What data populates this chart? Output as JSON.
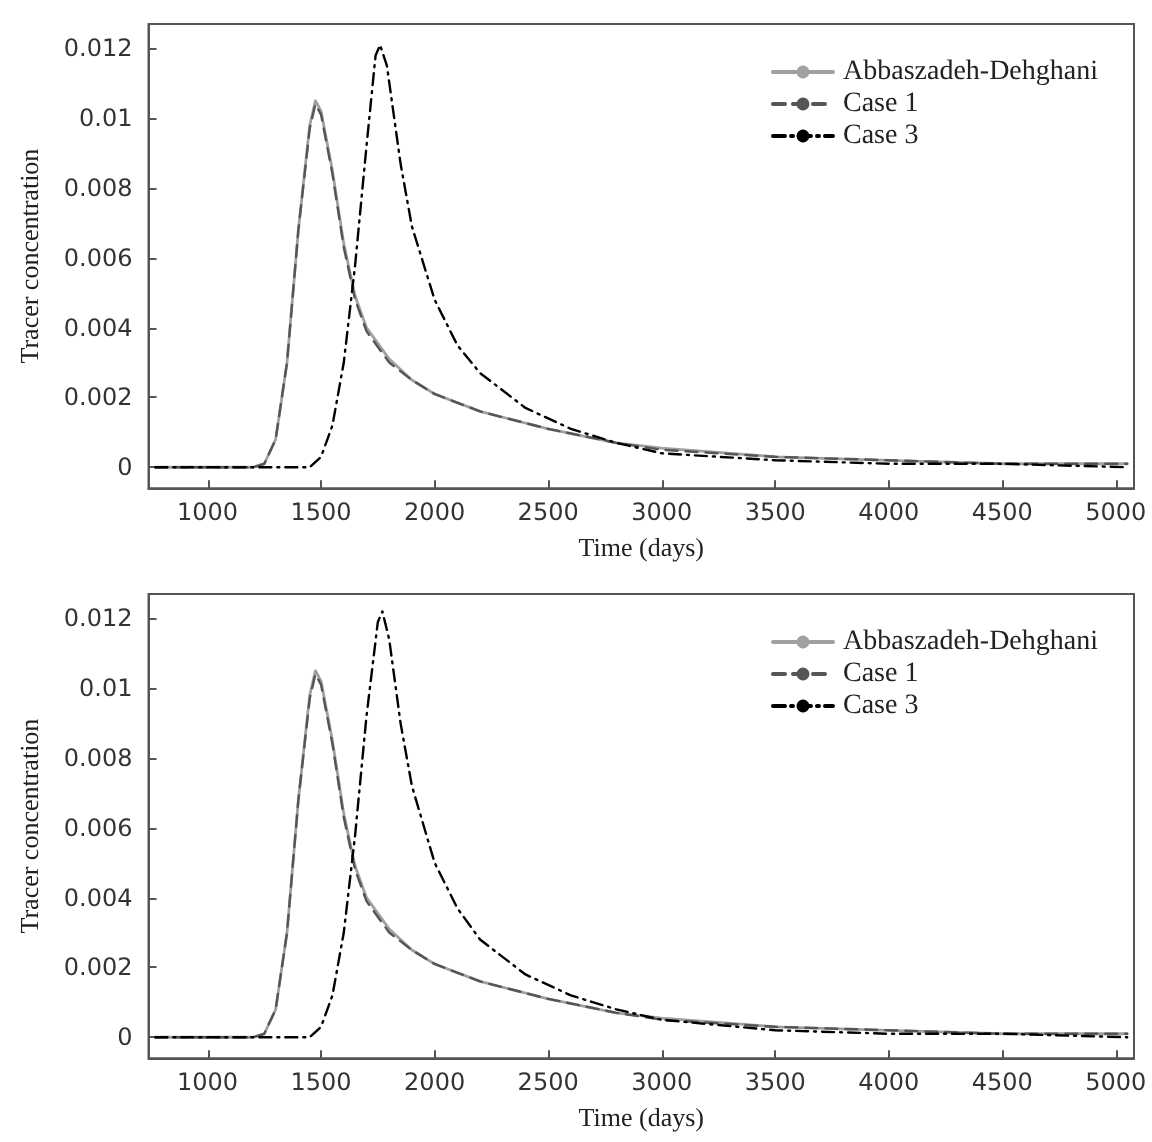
{
  "chart_data": [
    {
      "type": "line",
      "xlabel": "Time (days)",
      "ylabel": "Tracer concentration",
      "xlim": [
        740,
        5080
      ],
      "ylim": [
        -0.0006,
        0.0127
      ],
      "xticks": [
        1000,
        1500,
        2000,
        2500,
        3000,
        3500,
        4000,
        4500,
        5000
      ],
      "yticks": [
        0,
        0.002,
        0.004,
        0.006,
        0.008,
        0.01,
        0.012
      ],
      "grid": false,
      "legend": "top right",
      "marker": "none",
      "series": [
        {
          "name": "Abbaszadeh-Dehghani",
          "color": "#a0a0a0",
          "line_style": "solid",
          "x": [
            770,
            1000,
            1200,
            1250,
            1300,
            1350,
            1400,
            1450,
            1475,
            1500,
            1550,
            1600,
            1650,
            1700,
            1800,
            1900,
            2000,
            2200,
            2500,
            2800,
            3000,
            3500,
            4000,
            4500,
            5050
          ],
          "values": [
            0,
            0,
            0,
            0.0001,
            0.0008,
            0.003,
            0.0068,
            0.0098,
            0.0105,
            0.0102,
            0.0085,
            0.0064,
            0.0049,
            0.004,
            0.0031,
            0.0025,
            0.0021,
            0.0016,
            0.0011,
            0.0007,
            0.00055,
            0.0003,
            0.0002,
            0.0001,
            0.0001
          ]
        },
        {
          "name": "Case 1",
          "color": "#555555",
          "line_style": "dashed",
          "x": [
            770,
            1000,
            1200,
            1250,
            1300,
            1350,
            1400,
            1450,
            1475,
            1500,
            1550,
            1600,
            1650,
            1700,
            1800,
            1900,
            2000,
            2200,
            2500,
            2800,
            3000,
            3500,
            4000,
            4500,
            5050
          ],
          "values": [
            0,
            0,
            0,
            0.0001,
            0.0008,
            0.003,
            0.0068,
            0.0097,
            0.0104,
            0.0101,
            0.0084,
            0.0063,
            0.0048,
            0.0039,
            0.003,
            0.0025,
            0.0021,
            0.0016,
            0.0011,
            0.0007,
            0.0005,
            0.0003,
            0.0002,
            0.0001,
            0.0001
          ]
        },
        {
          "name": "Case 3",
          "color": "#000000",
          "line_style": "dashdot",
          "x": [
            770,
            1000,
            1400,
            1450,
            1500,
            1550,
            1600,
            1650,
            1700,
            1740,
            1760,
            1790,
            1850,
            1900,
            2000,
            2100,
            2200,
            2400,
            2600,
            2800,
            3000,
            3500,
            4000,
            4500,
            5050
          ],
          "values": [
            0,
            0,
            0,
            0,
            0.0003,
            0.0012,
            0.003,
            0.0058,
            0.0092,
            0.0118,
            0.0121,
            0.0115,
            0.0087,
            0.0069,
            0.0048,
            0.0035,
            0.0027,
            0.0017,
            0.0011,
            0.0007,
            0.0004,
            0.0002,
            0.0001,
            0.0001,
            0
          ]
        }
      ]
    },
    {
      "type": "line",
      "xlabel": "Time (days)",
      "ylabel": "Tracer concentration",
      "xlim": [
        740,
        5080
      ],
      "ylim": [
        -0.0006,
        0.0127
      ],
      "xticks": [
        1000,
        1500,
        2000,
        2500,
        3000,
        3500,
        4000,
        4500,
        5000
      ],
      "yticks": [
        0,
        0.002,
        0.004,
        0.006,
        0.008,
        0.01,
        0.012
      ],
      "grid": false,
      "legend": "top right",
      "marker": "none",
      "series": [
        {
          "name": "Abbaszadeh-Dehghani",
          "color": "#a0a0a0",
          "line_style": "solid",
          "x": [
            770,
            1000,
            1200,
            1250,
            1300,
            1350,
            1400,
            1450,
            1475,
            1500,
            1550,
            1600,
            1650,
            1700,
            1800,
            1900,
            2000,
            2200,
            2500,
            2800,
            3000,
            3500,
            4000,
            4500,
            5050
          ],
          "values": [
            0,
            0,
            0,
            0.0001,
            0.0008,
            0.003,
            0.0068,
            0.0098,
            0.0105,
            0.0102,
            0.0085,
            0.0064,
            0.0049,
            0.004,
            0.0031,
            0.0025,
            0.0021,
            0.0016,
            0.0011,
            0.0007,
            0.00055,
            0.0003,
            0.0002,
            0.0001,
            0.0001
          ]
        },
        {
          "name": "Case 1",
          "color": "#555555",
          "line_style": "dashed",
          "x": [
            770,
            1000,
            1200,
            1250,
            1300,
            1350,
            1400,
            1450,
            1475,
            1500,
            1550,
            1600,
            1650,
            1700,
            1800,
            1900,
            2000,
            2200,
            2500,
            2800,
            3000,
            3500,
            4000,
            4500,
            5050
          ],
          "values": [
            0,
            0,
            0,
            0.0001,
            0.0008,
            0.003,
            0.0068,
            0.0097,
            0.0104,
            0.0101,
            0.0084,
            0.0063,
            0.0048,
            0.0039,
            0.003,
            0.0025,
            0.0021,
            0.0016,
            0.0011,
            0.0007,
            0.0005,
            0.0003,
            0.0002,
            0.0001,
            0.0001
          ]
        },
        {
          "name": "Case 3",
          "color": "#000000",
          "line_style": "dashdot",
          "x": [
            770,
            1000,
            1400,
            1450,
            1500,
            1550,
            1600,
            1650,
            1700,
            1750,
            1770,
            1800,
            1850,
            1900,
            2000,
            2100,
            2200,
            2400,
            2600,
            2800,
            3000,
            3500,
            4000,
            4500,
            5050
          ],
          "values": [
            0,
            0,
            0,
            0,
            0.0003,
            0.0012,
            0.003,
            0.0058,
            0.0092,
            0.0119,
            0.0122,
            0.0114,
            0.009,
            0.0072,
            0.005,
            0.0037,
            0.0028,
            0.0018,
            0.0012,
            0.0008,
            0.0005,
            0.0002,
            0.0001,
            0.0001,
            0
          ]
        }
      ]
    }
  ]
}
